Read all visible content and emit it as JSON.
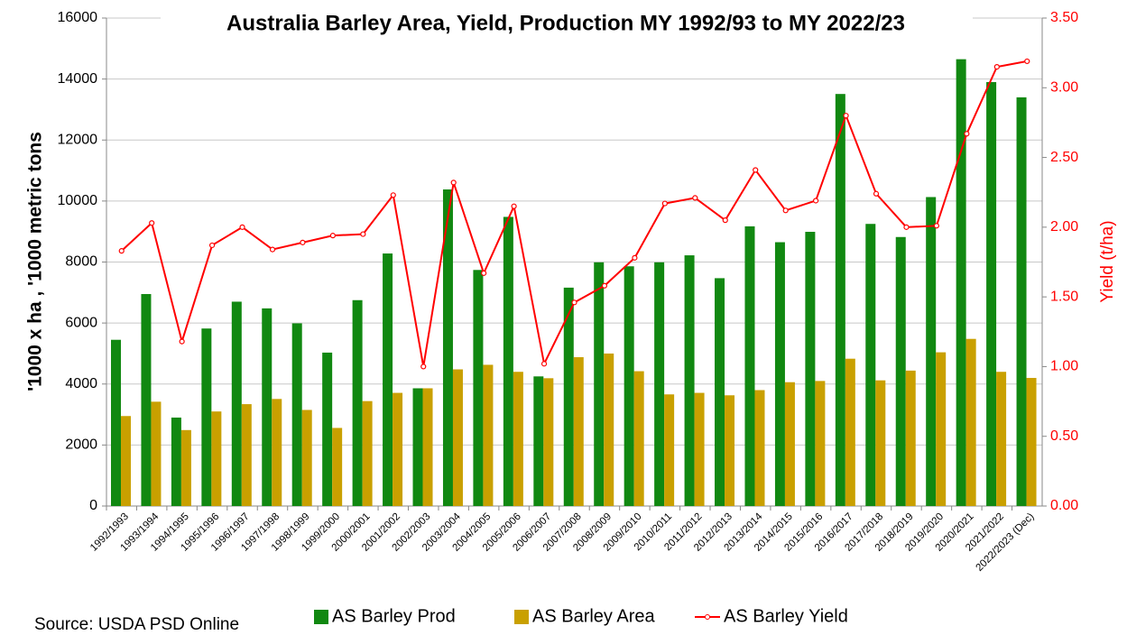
{
  "chart_data": {
    "type": "bar-line",
    "title": "Australia Barley Area, Yield, Production MY 1992/93 to MY 2022/23",
    "y_label": "'1000 x ha ,  '1000 metric tons",
    "y2_label": "Yield (t/ha)",
    "source": "Source: USDA PSD Online",
    "categories": [
      "1992/1993",
      "1993/1994",
      "1994/1995",
      "1995/1996",
      "1996/1997",
      "1997/1998",
      "1998/1999",
      "1999/2000",
      "2000/2001",
      "2001/2002",
      "2002/2003",
      "2003/2004",
      "2004/2005",
      "2005/2006",
      "2006/2007",
      "2007/2008",
      "2008/2009",
      "2009/2010",
      "2010/2011",
      "2011/2012",
      "2012/2013",
      "2013/2014",
      "2014/2015",
      "2015/2016",
      "2016/2017",
      "2017/2018",
      "2018/2019",
      "2019/2020",
      "2020/2021",
      "2021/2022",
      "2022/2023 (Dec)"
    ],
    "series": [
      {
        "name": "AS Barley Prod",
        "color": "#118811",
        "type": "bar",
        "values": [
          5450,
          6950,
          2900,
          5820,
          6700,
          6480,
          5990,
          5030,
          6750,
          8280,
          3860,
          10380,
          7740,
          9480,
          4250,
          7160,
          7990,
          7860,
          7990,
          8220,
          7470,
          9170,
          8650,
          8990,
          13510,
          9250,
          8820,
          10130,
          14650,
          13900,
          13400
        ]
      },
      {
        "name": "AS Barley Area",
        "color": "#c9a000",
        "type": "bar",
        "values": [
          2950,
          3420,
          2490,
          3100,
          3340,
          3510,
          3150,
          2560,
          3440,
          3710,
          3860,
          4480,
          4630,
          4400,
          4190,
          4880,
          5000,
          4420,
          3660,
          3710,
          3630,
          3800,
          4060,
          4100,
          4830,
          4120,
          4440,
          5040,
          5480,
          4400,
          4200
        ]
      },
      {
        "name": "AS Barley Yield",
        "color": "#ff0000",
        "type": "line",
        "axis": "y2",
        "values": [
          1.83,
          2.03,
          1.18,
          1.87,
          2.0,
          1.84,
          1.89,
          1.94,
          1.95,
          2.23,
          1.0,
          2.32,
          1.67,
          2.15,
          1.02,
          1.46,
          1.58,
          1.78,
          2.17,
          2.21,
          2.05,
          2.41,
          2.12,
          2.19,
          2.8,
          2.24,
          2.0,
          2.01,
          2.67,
          3.15,
          3.19
        ]
      }
    ],
    "ylim": [
      0,
      16000
    ],
    "yticks": [
      0,
      2000,
      4000,
      6000,
      8000,
      10000,
      12000,
      14000,
      16000
    ],
    "y2lim": [
      0,
      3.5
    ],
    "y2ticks": [
      {
        "value": 0,
        "label": "0.00"
      },
      {
        "value": 0.5,
        "label": "0.50"
      },
      {
        "value": 1,
        "label": "1.00"
      },
      {
        "value": 1.5,
        "label": "1.50"
      },
      {
        "value": 2,
        "label": "2.00"
      },
      {
        "value": 2.5,
        "label": "2.50"
      },
      {
        "value": 3,
        "label": "3.00"
      },
      {
        "value": 3.5,
        "label": "3.50"
      }
    ],
    "grid": true,
    "legend": "bottom"
  }
}
